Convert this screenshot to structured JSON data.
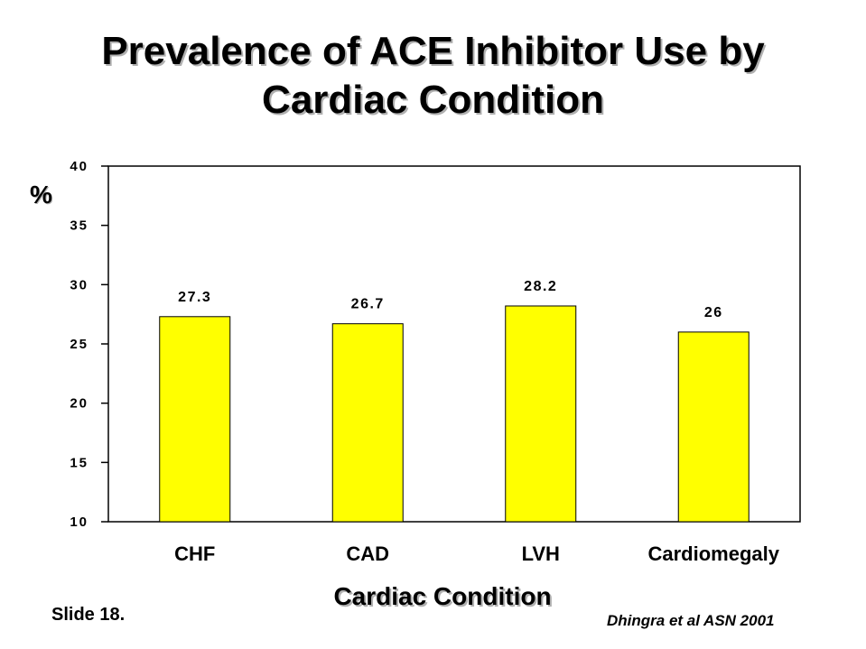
{
  "slide": {
    "title_line1": "Prevalence of ACE Inhibitor Use by",
    "title_line2": "Cardiac Condition",
    "slide_number": "Slide 18.",
    "citation": "Dhingra et al ASN 2001"
  },
  "chart_data": {
    "type": "bar",
    "categories": [
      "CHF",
      "CAD",
      "LVH",
      "Cardiomegaly"
    ],
    "values": [
      27.3,
      26.7,
      28.2,
      26
    ],
    "data_labels": [
      "27.3",
      "26.7",
      "28.2",
      "26"
    ],
    "ylabel": "%",
    "xlabel": "Cardiac Condition",
    "ylim": [
      10,
      40
    ],
    "yticks": [
      "10",
      "15",
      "20",
      "25",
      "30",
      "35",
      "40"
    ],
    "bar_color": "#ffff00",
    "grid": false,
    "legend": "none"
  }
}
